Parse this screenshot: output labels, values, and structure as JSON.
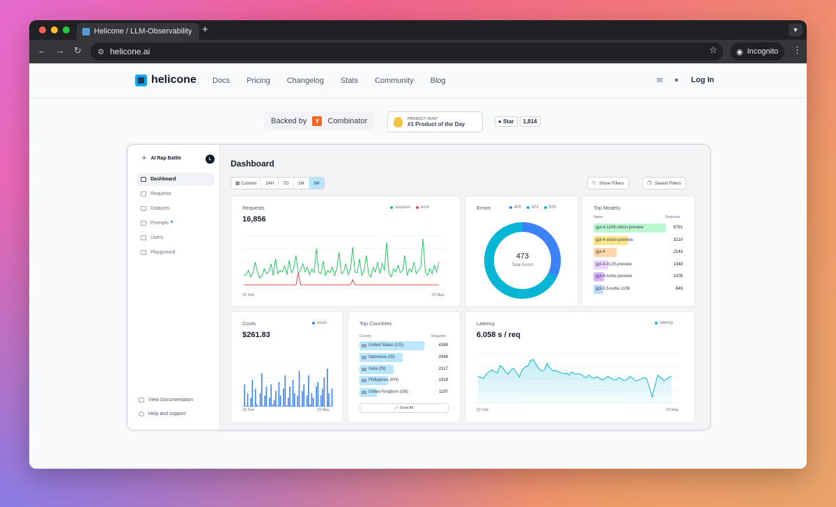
{
  "browser": {
    "tab_title": "Helicone / LLM-Observability",
    "new_tab": "+",
    "url": "helicone.ai",
    "incognito": "Incognito"
  },
  "site": {
    "brand": "helicone",
    "nav": [
      "Docs",
      "Pricing",
      "Changelog",
      "Stats",
      "Community",
      "Blog"
    ],
    "login": "Log In"
  },
  "badges": {
    "backed_by": "Backed by",
    "yc_letter": "Y",
    "combinator": "Combinator",
    "ph_top": "PRODUCT HUNT",
    "ph_main": "#1 Product of the Day",
    "gh_star": "Star",
    "gh_count": "1,814"
  },
  "dashboard": {
    "org": "AI Rap Battle",
    "org_avatar": "L",
    "menu": [
      "Dashboard",
      "Requests",
      "Datasets",
      "Prompts",
      "Users",
      "Playground"
    ],
    "footer": [
      "View Documentation",
      "Help and support"
    ],
    "title": "Dashboard",
    "time_filters": [
      "Custom",
      "24H",
      "7D",
      "1M",
      "3M"
    ],
    "selected_filter": "3M",
    "show_filters": "Show Filters",
    "saved_filters": "Saved Filters",
    "requests": {
      "title": "Requests",
      "value": "16,856",
      "legend": [
        "success",
        "error"
      ],
      "x_start": "22 Feb",
      "x_end": "23 May"
    },
    "errors": {
      "title": "Errors",
      "legend": [
        "400",
        "401",
        "500"
      ],
      "center_value": "473",
      "center_label": "Total Errors"
    },
    "top_models": {
      "title": "Top Models",
      "col_name": "Name",
      "col_requests": "Requests",
      "rows": [
        {
          "name": "gpt-4-1106-vision-preview",
          "value": "6791",
          "color": "#bbf7d0"
        },
        {
          "name": "gpt-4-vision-preview",
          "value": "3210",
          "color": "#fde68a"
        },
        {
          "name": "gpt-4",
          "value": "2143",
          "color": "#fed7aa"
        },
        {
          "name": "gpt-4-0125-preview",
          "value": "1349",
          "color": "#e9d5ff"
        },
        {
          "name": "gpt-4-turbo-preview",
          "value": "1005",
          "color": "#d8b4fe"
        },
        {
          "name": "gpt-3.5-turbo-1106",
          "value": "849",
          "color": "#bfdbfe"
        }
      ]
    },
    "costs": {
      "title": "Costs",
      "value": "$261.83",
      "legend": [
        "costs"
      ],
      "x_start": "22 Feb",
      "x_end": "23 May"
    },
    "top_countries": {
      "title": "Top Countries",
      "col_name": "Country",
      "col_requests": "Requests",
      "rows": [
        {
          "name": "United States (US)",
          "value": "4389"
        },
        {
          "name": "Indonesia (ID)",
          "value": "2948"
        },
        {
          "name": "India (IN)",
          "value": "2317"
        },
        {
          "name": "Philippines (PH)",
          "value": "1919"
        },
        {
          "name": "United Kingdom (GB)",
          "value": "1197"
        }
      ],
      "show_all": "Show All"
    },
    "latency": {
      "title": "Latency",
      "value": "6.058 s / req",
      "legend": [
        "latency"
      ],
      "x_start": "22 Feb",
      "x_end": "23 May"
    }
  },
  "chart_data": [
    {
      "type": "line",
      "title": "Requests",
      "series": [
        {
          "name": "success",
          "values": [
            20,
            22,
            35,
            15,
            28,
            60,
            30,
            12,
            18,
            40,
            25,
            30,
            55,
            20,
            70,
            25,
            35,
            30,
            48,
            22,
            65,
            28,
            40,
            80,
            25,
            35,
            55,
            30,
            45,
            22,
            40,
            28,
            100,
            30,
            25,
            62,
            20,
            35,
            28,
            45,
            20,
            40,
            90,
            25,
            30,
            55,
            22,
            38,
            105,
            30,
            28,
            70,
            20,
            35,
            80,
            25,
            15,
            45,
            30,
            60,
            25,
            55,
            35,
            120,
            25,
            15,
            40,
            30,
            50,
            28,
            35,
            80,
            20,
            40,
            30,
            60,
            25,
            35,
            45,
            130,
            30,
            20,
            40,
            25,
            50,
            30,
            60
          ]
        },
        {
          "name": "error",
          "values": [
            0,
            0,
            0,
            0,
            0,
            0,
            0,
            0,
            0,
            0,
            0,
            0,
            0,
            0,
            0,
            0,
            0,
            0,
            0,
            0,
            0,
            0,
            0,
            0,
            35,
            0,
            0,
            0,
            0,
            0,
            0,
            0,
            0,
            0,
            0,
            0,
            0,
            0,
            0,
            0,
            0,
            0,
            0,
            0,
            0,
            0,
            0,
            0,
            15,
            0,
            0,
            0,
            0,
            0,
            0,
            0,
            0,
            0,
            0,
            0,
            0,
            0,
            0,
            0,
            0,
            0,
            0,
            0,
            0,
            0,
            0,
            0,
            0,
            0,
            0,
            0,
            0,
            0,
            0,
            0,
            0,
            0,
            0,
            0,
            0,
            0,
            0
          ]
        }
      ]
    },
    {
      "type": "pie",
      "title": "Errors",
      "categories": [
        "400",
        "401",
        "500"
      ],
      "values": [
        150,
        8,
        315
      ],
      "colors": [
        "#3b82f6",
        "#0ea5e9",
        "#06b6d4"
      ]
    },
    {
      "type": "bar",
      "title": "Costs",
      "values": [
        1,
        50,
        2,
        30,
        1,
        20,
        60,
        2,
        40,
        5,
        1,
        30,
        75,
        2,
        25,
        45,
        1,
        20,
        50,
        5,
        15,
        35,
        2,
        55,
        25,
        1,
        40,
        70,
        3,
        20,
        45,
        2,
        60,
        30,
        1,
        25,
        80,
        2,
        35,
        50,
        1,
        25,
        70,
        5,
        30,
        20,
        1,
        45,
        55,
        2,
        25,
        40,
        65,
        1,
        85,
        30,
        2,
        40
      ]
    },
    {
      "type": "area",
      "title": "Latency",
      "series": [
        {
          "name": "latency",
          "values": [
            5.6,
            5.4,
            5.2,
            6.0,
            6.4,
            6.8,
            6.5,
            6.2,
            7.6,
            7.2,
            6.4,
            6.0,
            6.9,
            7.0,
            6.2,
            5.5,
            6.8,
            7.3,
            7.5,
            8.5,
            8.7,
            7.8,
            7.0,
            6.5,
            6.8,
            8.0,
            7.2,
            6.6,
            6.7,
            6.4,
            6.3,
            6.0,
            6.2,
            5.8,
            6.4,
            6.0,
            6.1,
            6.0,
            5.7,
            5.3,
            5.8,
            5.4,
            5.3,
            5.5,
            5.2,
            4.9,
            5.2,
            5.6,
            5.2,
            5.0,
            4.9,
            5.4,
            5.0,
            4.8,
            5.1,
            5.6,
            5.2,
            4.7,
            4.9,
            5.1,
            5.4,
            5.1,
            3.5,
            1.8,
            3.9,
            5.8,
            5.4,
            4.8,
            5.0,
            5.4,
            5.6
          ]
        }
      ]
    }
  ]
}
